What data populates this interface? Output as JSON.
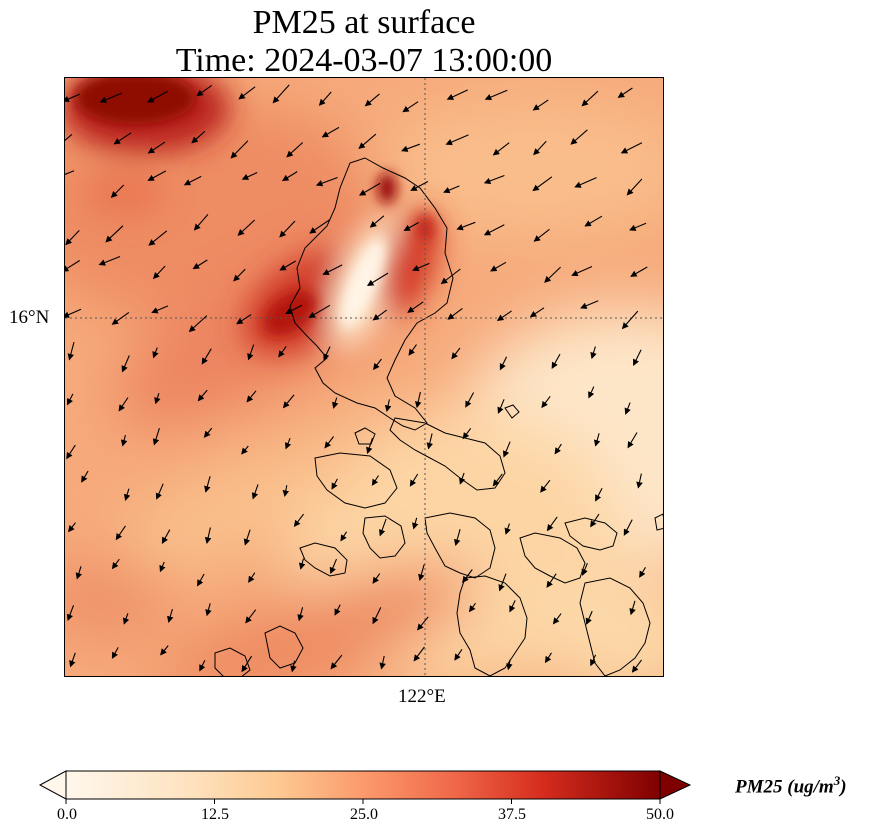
{
  "title": {
    "line1": "PM25 at surface",
    "line2": "Time: 2024-03-07 13:00:00"
  },
  "map": {
    "gridlines": {
      "latitude": "16°N",
      "longitude": "122°E",
      "style": "dotted"
    },
    "variable": "PM25",
    "wind_vectors": true,
    "coastlines": true,
    "hotspot_colors": [
      "#fff5e8",
      "#fdd39c",
      "#f7a073",
      "#e35b3f",
      "#b81a12",
      "#7a0003"
    ]
  },
  "colorbar": {
    "label_prefix": "PM25 (ug/m",
    "label_exp": "3",
    "label_suffix": ")",
    "ticks": [
      "0.0",
      "12.5",
      "25.0",
      "37.5",
      "50.0"
    ],
    "min": 0,
    "max": 50,
    "extend": "both",
    "colormap": "OrRd"
  }
}
